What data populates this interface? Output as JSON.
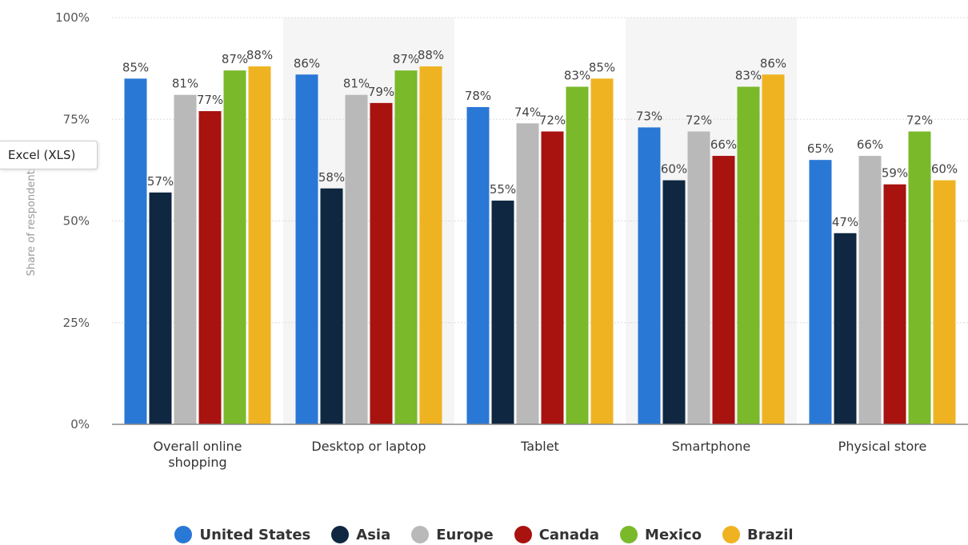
{
  "download_button": {
    "label": "Excel (XLS)"
  },
  "chart_data": {
    "type": "bar",
    "ylabel": "Share of respondents",
    "ylim": [
      0,
      100
    ],
    "yticks": [
      "0%",
      "25%",
      "50%",
      "75%",
      "100%"
    ],
    "ytick_values": [
      0,
      25,
      50,
      75,
      100
    ],
    "grid": true,
    "legend_position": "bottom",
    "categories": [
      [
        "Overall online",
        "shopping"
      ],
      [
        "Desktop or laptop"
      ],
      [
        "Tablet"
      ],
      [
        "Smartphone"
      ],
      [
        "Physical store"
      ]
    ],
    "series": [
      {
        "name": "United States",
        "color": "#2a78d6",
        "values": [
          85,
          86,
          78,
          73,
          65
        ],
        "labels": [
          "85%",
          "86%",
          "78%",
          "73%",
          "65%"
        ]
      },
      {
        "name": "Asia",
        "color": "#0f2740",
        "values": [
          57,
          58,
          55,
          60,
          47
        ],
        "labels": [
          "57%",
          "58%",
          "55%",
          "60%",
          "47%"
        ]
      },
      {
        "name": "Europe",
        "color": "#b9b9b9",
        "values": [
          81,
          81,
          74,
          72,
          66
        ],
        "labels": [
          "81%",
          "81%",
          "74%",
          "72%",
          "66%"
        ]
      },
      {
        "name": "Canada",
        "color": "#a8120f",
        "values": [
          77,
          79,
          72,
          66,
          59
        ],
        "labels": [
          "77%",
          "79%",
          "72%",
          "66%",
          "59%"
        ]
      },
      {
        "name": "Mexico",
        "color": "#7ab92a",
        "values": [
          87,
          87,
          83,
          83,
          72
        ],
        "labels": [
          "87%",
          "87%",
          "83%",
          "83%",
          "72%"
        ]
      },
      {
        "name": "Brazil",
        "color": "#efb321",
        "values": [
          88,
          88,
          85,
          86,
          60
        ],
        "labels": [
          "88%",
          "88%",
          "85%",
          "86%",
          "60%"
        ]
      }
    ]
  }
}
